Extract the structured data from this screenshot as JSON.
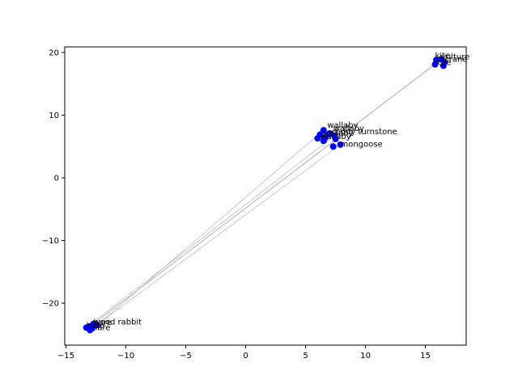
{
  "chart_data": {
    "type": "scatter",
    "title": "",
    "xlabel": "",
    "ylabel": "",
    "xlim": [
      -15.1,
      18.4
    ],
    "ylim": [
      -26.7,
      20.9
    ],
    "xticks": [
      -15,
      -10,
      -5,
      0,
      5,
      10,
      15
    ],
    "yticks": [
      -20,
      -10,
      0,
      10,
      20
    ],
    "xtick_labels": [
      "−15",
      "−10",
      "−5",
      "0",
      "5",
      "10",
      "15"
    ],
    "ytick_labels": [
      "−20",
      "−10",
      "0",
      "10",
      "20"
    ],
    "grid": false,
    "marker_color": "#0000ff",
    "line_color": "#aaaaaa",
    "points": [
      {
        "label": "vulture",
        "x": 16.3,
        "y": 18.9
      },
      {
        "label": "kite",
        "x": 15.9,
        "y": 18.8
      },
      {
        "label": "crane",
        "x": 16.6,
        "y": 18.5
      },
      {
        "label": "kite",
        "x": 15.8,
        "y": 18.1
      },
      {
        "label": "",
        "x": 16.5,
        "y": 17.9
      },
      {
        "label": "wallaby",
        "x": 6.5,
        "y": 7.6
      },
      {
        "label": "ruddy turnstone",
        "x": 7.0,
        "y": 7.1
      },
      {
        "label": "",
        "x": 6.2,
        "y": 6.9
      },
      {
        "label": "",
        "x": 6.9,
        "y": 6.9
      },
      {
        "label": "",
        "x": 7.4,
        "y": 6.7
      },
      {
        "label": "",
        "x": 6.0,
        "y": 6.3
      },
      {
        "label": "",
        "x": 6.6,
        "y": 6.3
      },
      {
        "label": "",
        "x": 7.5,
        "y": 6.2
      },
      {
        "label": "",
        "x": 6.5,
        "y": 5.9
      },
      {
        "label": "mongoose",
        "x": 7.9,
        "y": 5.3
      },
      {
        "label": "",
        "x": 7.3,
        "y": 5.0
      },
      {
        "label": "wood rabbit",
        "x": -12.7,
        "y": -23.3
      },
      {
        "label": "",
        "x": -12.4,
        "y": -23.5
      },
      {
        "label": "",
        "x": -13.0,
        "y": -23.7
      },
      {
        "label": "hare",
        "x": -13.3,
        "y": -23.9
      },
      {
        "label": "",
        "x": -12.8,
        "y": -24.0
      },
      {
        "label": "",
        "x": -13.0,
        "y": -24.3
      }
    ],
    "annotations": [
      {
        "text": "vulture",
        "x": 16.3,
        "y": 18.9
      },
      {
        "text": "kite",
        "x": 15.8,
        "y": 19.1
      },
      {
        "text": "crane",
        "x": 16.6,
        "y": 18.5
      },
      {
        "text": "kite",
        "x": 15.9,
        "y": 18.0
      },
      {
        "text": "wallaby",
        "x": 6.8,
        "y": 8.0
      },
      {
        "text": "wallaby",
        "x": 7.3,
        "y": 7.5
      },
      {
        "text": "ruddy turnstone",
        "x": 7.2,
        "y": 7.0
      },
      {
        "text": "wallaby",
        "x": 6.4,
        "y": 6.8
      },
      {
        "text": "wallaby",
        "x": 6.2,
        "y": 6.2
      },
      {
        "text": "mongoose",
        "x": 7.9,
        "y": 5.0
      },
      {
        "text": "wood rabbit",
        "x": -12.7,
        "y": -23.4
      },
      {
        "text": "hare",
        "x": -12.7,
        "y": -23.5
      },
      {
        "text": "hare",
        "x": -13.3,
        "y": -24.0
      },
      {
        "text": "hare",
        "x": -12.8,
        "y": -24.3
      }
    ],
    "connections": [
      [
        0,
        18
      ],
      [
        3,
        16
      ],
      [
        5,
        17
      ],
      [
        9,
        19
      ],
      [
        14,
        20
      ]
    ]
  }
}
